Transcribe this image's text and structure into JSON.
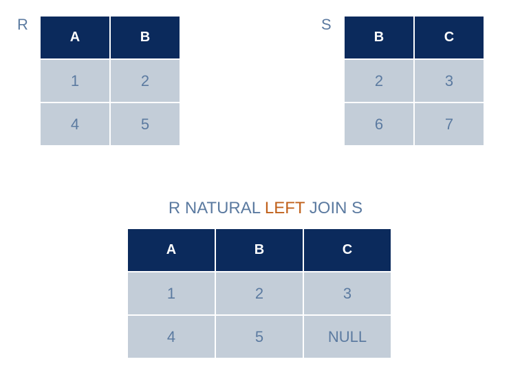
{
  "relation_r": {
    "name": "R",
    "columns": [
      "A",
      "B"
    ],
    "rows": [
      [
        "1",
        "2"
      ],
      [
        "4",
        "5"
      ]
    ]
  },
  "relation_s": {
    "name": "S",
    "columns": [
      "B",
      "C"
    ],
    "rows": [
      [
        "2",
        "3"
      ],
      [
        "6",
        "7"
      ]
    ]
  },
  "result": {
    "title_prefix": "R NATURAL ",
    "title_keyword": "LEFT",
    "title_suffix": " JOIN S",
    "keyword_color": "#c0601a",
    "columns": [
      "A",
      "B",
      "C"
    ],
    "rows": [
      [
        "1",
        "2",
        "3"
      ],
      [
        "4",
        "5",
        "NULL"
      ]
    ]
  },
  "colors": {
    "header_bg": "#0b2a5c",
    "cell_bg": "#c3cdd8",
    "text": "#5b7aa0"
  }
}
